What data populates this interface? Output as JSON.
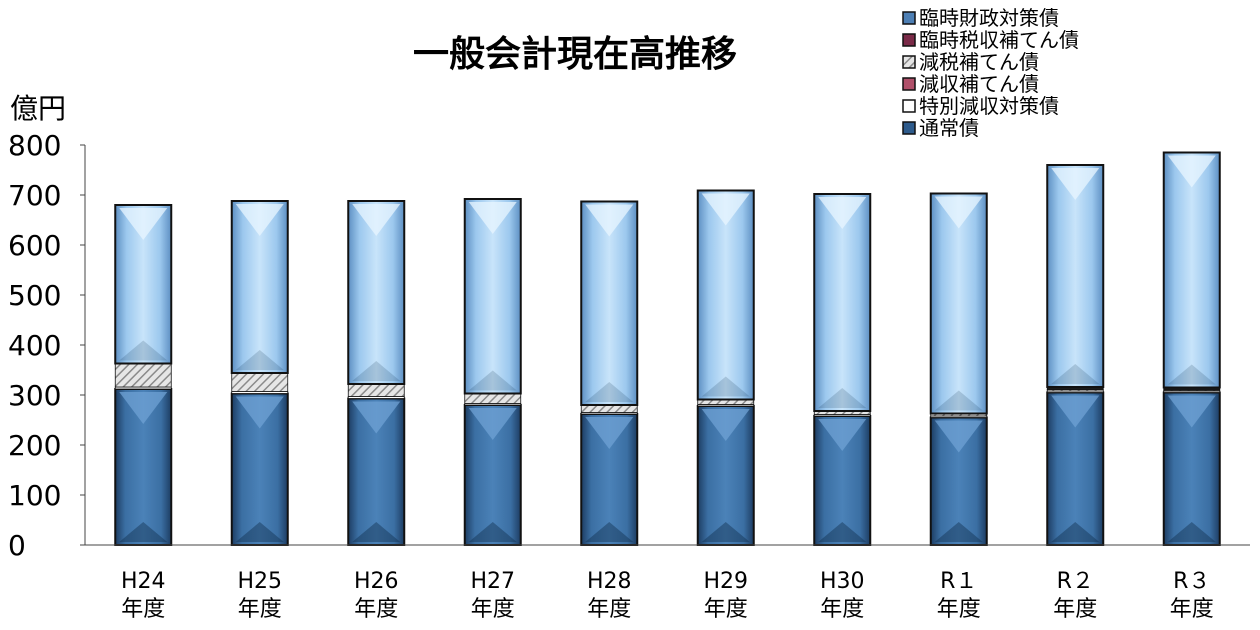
{
  "chart_data": {
    "type": "bar",
    "stacked": true,
    "title": "一般会計現在高推移",
    "ylabel": "億円",
    "ylim": [
      0,
      800
    ],
    "yticks": [
      0,
      100,
      200,
      300,
      400,
      500,
      600,
      700,
      800
    ],
    "categories": [
      [
        "H24",
        "年度"
      ],
      [
        "H25",
        "年度"
      ],
      [
        "H26",
        "年度"
      ],
      [
        "H27",
        "年度"
      ],
      [
        "H28",
        "年度"
      ],
      [
        "H29",
        "年度"
      ],
      [
        "H30",
        "年度"
      ],
      [
        "R１",
        "年度"
      ],
      [
        "R２",
        "年度"
      ],
      [
        "R３",
        "年度"
      ]
    ],
    "legend_position": "top-right",
    "series": [
      {
        "name": "通常債",
        "color": "#2e5b8c",
        "values": [
          312,
          303,
          293,
          280,
          262,
          278,
          258,
          255,
          305,
          305
        ]
      },
      {
        "name": "特別減収対策債",
        "color": "#ffffff",
        "values": [
          4,
          4,
          4,
          3,
          3,
          3,
          3,
          3,
          3,
          3
        ]
      },
      {
        "name": "減収補てん債",
        "color": "#b0506a",
        "values": [
          0,
          0,
          0,
          0,
          0,
          0,
          0,
          0,
          0,
          0
        ]
      },
      {
        "name": "減税補てん債",
        "color": "#b8b8b8",
        "values": [
          47,
          37,
          25,
          20,
          15,
          10,
          7,
          5,
          3,
          2
        ]
      },
      {
        "name": "臨時税収補てん債",
        "color": "#8a3050",
        "values": [
          0,
          0,
          0,
          0,
          0,
          0,
          0,
          0,
          5,
          5
        ]
      },
      {
        "name": "臨時財政対策債",
        "color": "#a9d0f0",
        "values": [
          317,
          344,
          366,
          389,
          407,
          418,
          434,
          440,
          444,
          470
        ]
      }
    ],
    "legend_order": [
      "臨時財政対策債",
      "臨時税収補てん債",
      "減税補てん債",
      "減収補てん債",
      "特別減収対策債",
      "通常債"
    ]
  }
}
